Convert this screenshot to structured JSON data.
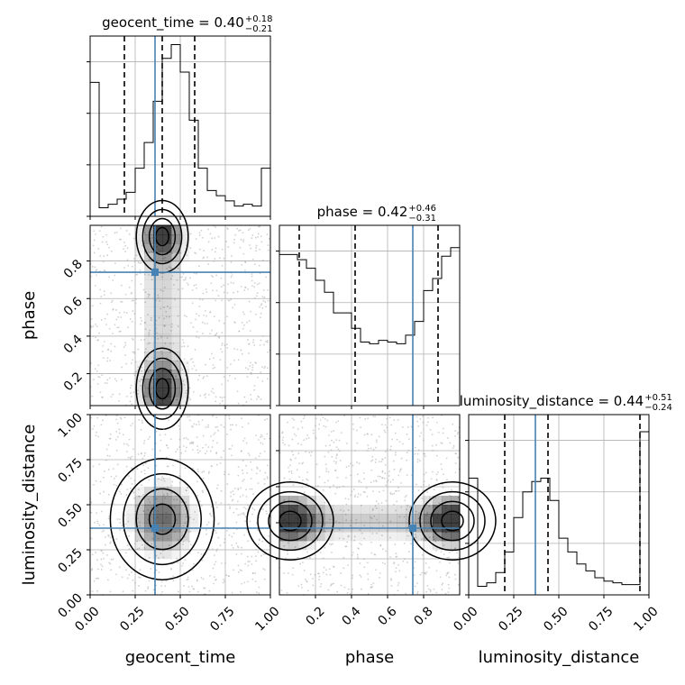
{
  "chart_data": {
    "type": "corner",
    "parameters": [
      "geocent_time",
      "phase",
      "luminosity_distance"
    ],
    "truth_color": "#4682b4",
    "grid": true,
    "truths": {
      "geocent_time": 0.36,
      "phase": 0.74,
      "luminosity_distance": 0.37
    },
    "diagonal": [
      {
        "param": "geocent_time",
        "title_main": "geocent_time = 0.40",
        "title_plus": "+0.18",
        "title_minus": "−0.21",
        "xlim": [
          0,
          1
        ],
        "ymax": 1.05,
        "bin_edges": [
          0.0,
          0.05,
          0.1,
          0.15,
          0.2,
          0.25,
          0.3,
          0.35,
          0.4,
          0.45,
          0.5,
          0.55,
          0.6,
          0.65,
          0.7,
          0.75,
          0.8,
          0.85,
          0.9,
          0.95,
          1.0
        ],
        "counts": [
          0.78,
          0.05,
          0.07,
          0.1,
          0.14,
          0.28,
          0.43,
          0.67,
          0.92,
          1.0,
          0.84,
          0.56,
          0.28,
          0.15,
          0.12,
          0.09,
          0.06,
          0.07,
          0.06,
          0.28
        ],
        "quantiles": [
          0.19,
          0.4,
          0.58
        ]
      },
      {
        "param": "phase",
        "title_main": "phase = 0.42",
        "title_plus": "+0.46",
        "title_minus": "−0.31",
        "xlim": [
          0,
          1
        ],
        "ymax": 1.05,
        "xticks": [
          0.2,
          0.4,
          0.6,
          0.8
        ],
        "bin_edges": [
          0.0,
          0.05,
          0.1,
          0.15,
          0.2,
          0.25,
          0.3,
          0.35,
          0.4,
          0.45,
          0.5,
          0.55,
          0.6,
          0.65,
          0.7,
          0.75,
          0.8,
          0.85,
          0.9,
          0.95,
          1.0
        ],
        "counts": [
          0.88,
          0.88,
          0.85,
          0.8,
          0.73,
          0.66,
          0.54,
          0.54,
          0.45,
          0.37,
          0.36,
          0.38,
          0.37,
          0.36,
          0.41,
          0.49,
          0.67,
          0.74,
          0.87,
          0.92
        ],
        "quantiles": [
          0.11,
          0.42,
          0.88
        ]
      },
      {
        "param": "luminosity_distance",
        "title_main": "luminosity_distance = 0.44",
        "title_plus": "+0.51",
        "title_minus": "−0.24",
        "xlim": [
          0,
          1
        ],
        "ymax": 1.05,
        "xticks": [
          0.0,
          0.25,
          0.5,
          0.75,
          1.0
        ],
        "xtick_labels": [
          "0.00",
          "0.25",
          "0.50",
          "0.75",
          "1.00"
        ],
        "bin_edges": [
          0.0,
          0.05,
          0.1,
          0.15,
          0.2,
          0.25,
          0.3,
          0.35,
          0.4,
          0.45,
          0.5,
          0.55,
          0.6,
          0.65,
          0.7,
          0.75,
          0.8,
          0.85,
          0.9,
          0.95,
          1.0
        ],
        "counts": [
          0.68,
          0.05,
          0.07,
          0.13,
          0.25,
          0.45,
          0.6,
          0.66,
          0.68,
          0.55,
          0.33,
          0.25,
          0.18,
          0.14,
          0.1,
          0.08,
          0.07,
          0.06,
          0.06,
          0.95
        ],
        "quantiles": [
          0.2,
          0.44,
          0.95
        ]
      }
    ],
    "panels": [
      {
        "x_param": "geocent_time",
        "y_param": "phase",
        "xlim": [
          0,
          1
        ],
        "ylim": [
          0.03,
          0.99
        ],
        "yticks": [
          0.2,
          0.4,
          0.6,
          0.8
        ],
        "ylabel": "phase",
        "modes": [
          {
            "cx": 0.4,
            "cy": 0.12,
            "sx": 0.06,
            "sy": 0.09,
            "w": 1.0
          },
          {
            "cx": 0.4,
            "cy": 0.93,
            "sx": 0.06,
            "sy": 0.08,
            "w": 0.9
          }
        ],
        "bands": [
          {
            "axis": "x",
            "c": 0.4,
            "s": 0.12,
            "w": 0.45
          }
        ]
      },
      {
        "x_param": "geocent_time",
        "y_param": "luminosity_distance",
        "xlim": [
          0,
          1
        ],
        "ylim": [
          0,
          1
        ],
        "xticks": [
          0.0,
          0.25,
          0.5,
          0.75,
          1.0
        ],
        "xtick_labels": [
          "0.00",
          "0.25",
          "0.50",
          "0.75",
          "1.00"
        ],
        "yticks": [
          0.0,
          0.25,
          0.5,
          0.75,
          1.0
        ],
        "ytick_labels": [
          "0.00",
          "0.25",
          "0.50",
          "0.75",
          "1.00"
        ],
        "xlabel": "geocent_time",
        "ylabel": "luminosity_distance",
        "modes": [
          {
            "cx": 0.4,
            "cy": 0.42,
            "sx": 0.12,
            "sy": 0.14,
            "w": 1.0
          }
        ],
        "bands": []
      },
      {
        "x_param": "phase",
        "y_param": "luminosity_distance",
        "xlim": [
          0,
          1
        ],
        "ylim": [
          0,
          1
        ],
        "xticks": [
          0.2,
          0.4,
          0.6,
          0.8
        ],
        "xtick_labels": [
          "0.2",
          "0.4",
          "0.6",
          "0.8"
        ],
        "xlabel": "phase",
        "modes": [
          {
            "cx": 0.06,
            "cy": 0.41,
            "sx": 0.1,
            "sy": 0.09,
            "w": 1.0
          },
          {
            "cx": 0.96,
            "cy": 0.41,
            "sx": 0.1,
            "sy": 0.09,
            "w": 1.0
          }
        ],
        "bands": [
          {
            "axis": "y",
            "c": 0.41,
            "s": 0.09,
            "w": 0.5
          }
        ]
      }
    ]
  }
}
